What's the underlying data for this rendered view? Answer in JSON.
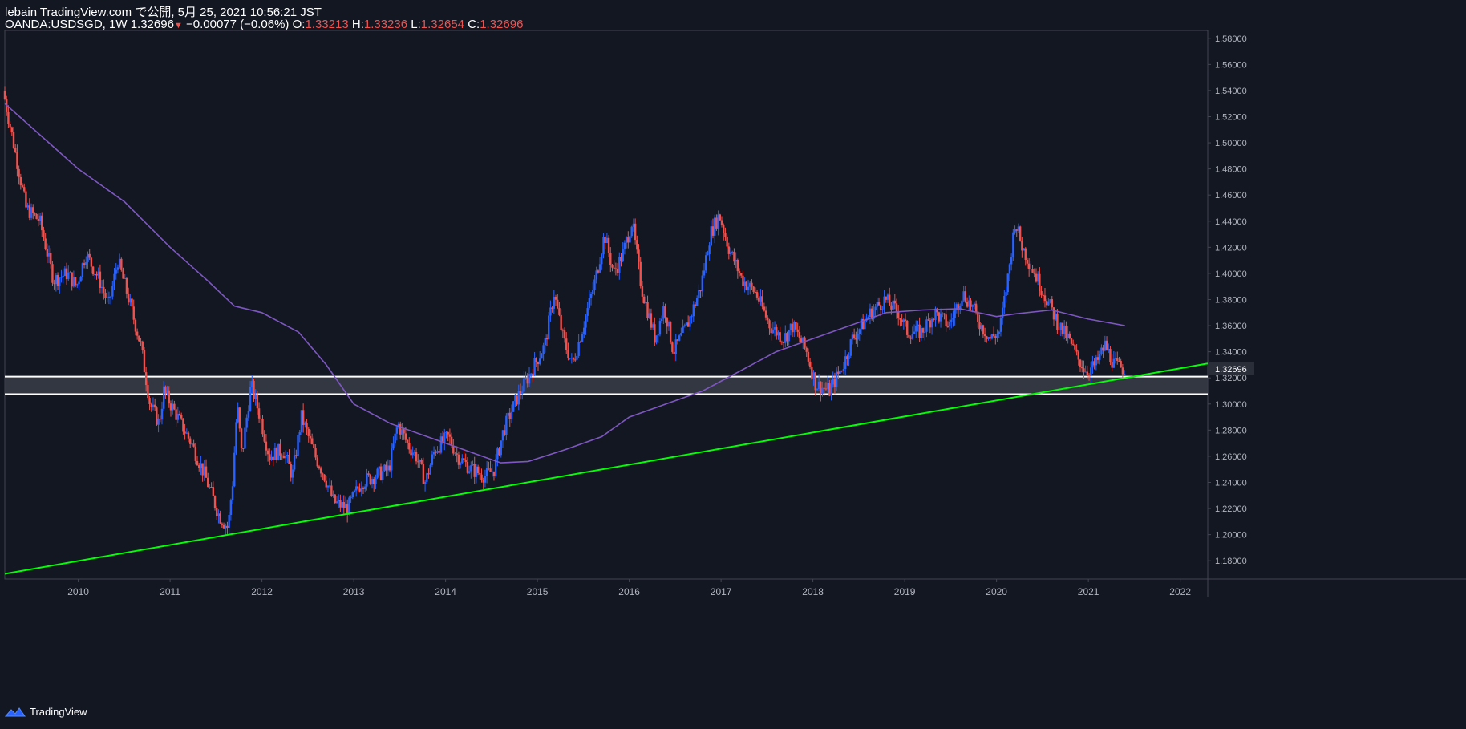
{
  "header": {
    "line1": "lebain TradingView.com で公開, 5月 25, 2021 10:56:21 JST",
    "symbol": "OANDA:USDSGD, 1W",
    "last": "1.32696",
    "change": "−0.00077 (−0.06%)",
    "o_label": "O:",
    "o_value": "1.33213",
    "h_label": "H:",
    "h_value": "1.33236",
    "l_label": "L:",
    "l_value": "1.32654",
    "c_label": "C:",
    "c_value": "1.32696"
  },
  "footer": {
    "brand": "TradingView",
    "logo_icon": "tradingview-logo-icon"
  },
  "colors": {
    "background": "#131722",
    "up": "#2962ff",
    "down": "#ef5350",
    "ma": "#7e57c2",
    "trendline": "#00ff00",
    "zone_border": "#ffffff",
    "zone_fill": "#3a3d48",
    "axis_text": "#b2b5be"
  },
  "chart_data": {
    "type": "candlestick",
    "symbol": "OANDA:USDSGD",
    "interval": "1W",
    "ylim": [
      1.166,
      1.586
    ],
    "y_ticks": [
      "1.18000",
      "1.20000",
      "1.22000",
      "1.24000",
      "1.26000",
      "1.28000",
      "1.30000",
      "1.32000",
      "1.34000",
      "1.36000",
      "1.38000",
      "1.40000",
      "1.42000",
      "1.44000",
      "1.46000",
      "1.48000",
      "1.50000",
      "1.52000",
      "1.54000",
      "1.56000",
      "1.58000"
    ],
    "x_ticks": [
      "2010",
      "2011",
      "2012",
      "2013",
      "2014",
      "2015",
      "2016",
      "2017",
      "2018",
      "2019",
      "2020",
      "2021",
      "2022"
    ],
    "x_range": [
      2009.2,
      2022.3
    ],
    "last_price_label": "1.32696",
    "price_path": [
      [
        2009.2,
        1.54
      ],
      [
        2009.3,
        1.505
      ],
      [
        2009.45,
        1.45
      ],
      [
        2009.6,
        1.44
      ],
      [
        2009.75,
        1.395
      ],
      [
        2009.9,
        1.4
      ],
      [
        2010.0,
        1.39
      ],
      [
        2010.1,
        1.415
      ],
      [
        2010.25,
        1.395
      ],
      [
        2010.35,
        1.375
      ],
      [
        2010.45,
        1.41
      ],
      [
        2010.55,
        1.385
      ],
      [
        2010.7,
        1.345
      ],
      [
        2010.8,
        1.3
      ],
      [
        2010.9,
        1.285
      ],
      [
        2010.95,
        1.31
      ],
      [
        2011.1,
        1.29
      ],
      [
        2011.25,
        1.27
      ],
      [
        2011.4,
        1.245
      ],
      [
        2011.55,
        1.215
      ],
      [
        2011.65,
        1.205
      ],
      [
        2011.7,
        1.24
      ],
      [
        2011.75,
        1.3
      ],
      [
        2011.8,
        1.26
      ],
      [
        2011.9,
        1.315
      ],
      [
        2012.0,
        1.29
      ],
      [
        2012.1,
        1.26
      ],
      [
        2012.25,
        1.265
      ],
      [
        2012.35,
        1.245
      ],
      [
        2012.45,
        1.29
      ],
      [
        2012.6,
        1.26
      ],
      [
        2012.7,
        1.245
      ],
      [
        2012.8,
        1.225
      ],
      [
        2012.95,
        1.22
      ],
      [
        2013.1,
        1.24
      ],
      [
        2013.25,
        1.245
      ],
      [
        2013.4,
        1.25
      ],
      [
        2013.5,
        1.285
      ],
      [
        2013.6,
        1.27
      ],
      [
        2013.7,
        1.26
      ],
      [
        2013.8,
        1.24
      ],
      [
        2013.9,
        1.265
      ],
      [
        2014.05,
        1.275
      ],
      [
        2014.15,
        1.26
      ],
      [
        2014.3,
        1.25
      ],
      [
        2014.45,
        1.245
      ],
      [
        2014.55,
        1.25
      ],
      [
        2014.65,
        1.28
      ],
      [
        2014.8,
        1.305
      ],
      [
        2014.95,
        1.325
      ],
      [
        2015.1,
        1.345
      ],
      [
        2015.2,
        1.385
      ],
      [
        2015.3,
        1.35
      ],
      [
        2015.4,
        1.33
      ],
      [
        2015.5,
        1.355
      ],
      [
        2015.65,
        1.395
      ],
      [
        2015.75,
        1.43
      ],
      [
        2015.85,
        1.4
      ],
      [
        2015.95,
        1.415
      ],
      [
        2016.05,
        1.44
      ],
      [
        2016.15,
        1.39
      ],
      [
        2016.3,
        1.35
      ],
      [
        2016.4,
        1.375
      ],
      [
        2016.5,
        1.34
      ],
      [
        2016.65,
        1.36
      ],
      [
        2016.8,
        1.39
      ],
      [
        2016.9,
        1.43
      ],
      [
        2017.0,
        1.445
      ],
      [
        2017.1,
        1.42
      ],
      [
        2017.25,
        1.395
      ],
      [
        2017.4,
        1.385
      ],
      [
        2017.55,
        1.36
      ],
      [
        2017.7,
        1.35
      ],
      [
        2017.8,
        1.36
      ],
      [
        2017.95,
        1.34
      ],
      [
        2018.05,
        1.315
      ],
      [
        2018.2,
        1.31
      ],
      [
        2018.35,
        1.33
      ],
      [
        2018.45,
        1.35
      ],
      [
        2018.55,
        1.36
      ],
      [
        2018.65,
        1.37
      ],
      [
        2018.8,
        1.38
      ],
      [
        2018.95,
        1.37
      ],
      [
        2019.05,
        1.355
      ],
      [
        2019.2,
        1.355
      ],
      [
        2019.35,
        1.37
      ],
      [
        2019.5,
        1.36
      ],
      [
        2019.65,
        1.385
      ],
      [
        2019.75,
        1.375
      ],
      [
        2019.85,
        1.36
      ],
      [
        2019.95,
        1.35
      ],
      [
        2020.05,
        1.355
      ],
      [
        2020.15,
        1.4
      ],
      [
        2020.22,
        1.44
      ],
      [
        2020.3,
        1.42
      ],
      [
        2020.4,
        1.405
      ],
      [
        2020.5,
        1.39
      ],
      [
        2020.6,
        1.375
      ],
      [
        2020.7,
        1.36
      ],
      [
        2020.8,
        1.35
      ],
      [
        2020.9,
        1.335
      ],
      [
        2021.0,
        1.325
      ],
      [
        2021.1,
        1.33
      ],
      [
        2021.2,
        1.345
      ],
      [
        2021.3,
        1.33
      ],
      [
        2021.4,
        1.327
      ]
    ],
    "ma_path": [
      [
        2009.2,
        1.53
      ],
      [
        2009.6,
        1.505
      ],
      [
        2010.0,
        1.48
      ],
      [
        2010.5,
        1.455
      ],
      [
        2011.0,
        1.42
      ],
      [
        2011.4,
        1.395
      ],
      [
        2011.7,
        1.375
      ],
      [
        2012.0,
        1.37
      ],
      [
        2012.4,
        1.355
      ],
      [
        2012.7,
        1.33
      ],
      [
        2013.0,
        1.3
      ],
      [
        2013.4,
        1.285
      ],
      [
        2013.8,
        1.275
      ],
      [
        2014.2,
        1.265
      ],
      [
        2014.6,
        1.255
      ],
      [
        2014.9,
        1.256
      ],
      [
        2015.3,
        1.265
      ],
      [
        2015.7,
        1.275
      ],
      [
        2016.0,
        1.29
      ],
      [
        2016.4,
        1.3
      ],
      [
        2016.8,
        1.31
      ],
      [
        2017.2,
        1.325
      ],
      [
        2017.6,
        1.34
      ],
      [
        2018.0,
        1.35
      ],
      [
        2018.4,
        1.36
      ],
      [
        2018.8,
        1.37
      ],
      [
        2019.2,
        1.372
      ],
      [
        2019.6,
        1.373
      ],
      [
        2020.0,
        1.367
      ],
      [
        2020.2,
        1.369
      ],
      [
        2020.6,
        1.372
      ],
      [
        2021.0,
        1.365
      ],
      [
        2021.4,
        1.36
      ]
    ],
    "trendline": {
      "start": [
        2009.2,
        1.17
      ],
      "end": [
        2022.3,
        1.331
      ]
    },
    "support_zone": {
      "upper": 1.321,
      "lower": 1.3075
    },
    "annotations": [
      "200-period moving average (purple)",
      "rising trendline (green)",
      "horizontal support zone (white lines)"
    ]
  }
}
